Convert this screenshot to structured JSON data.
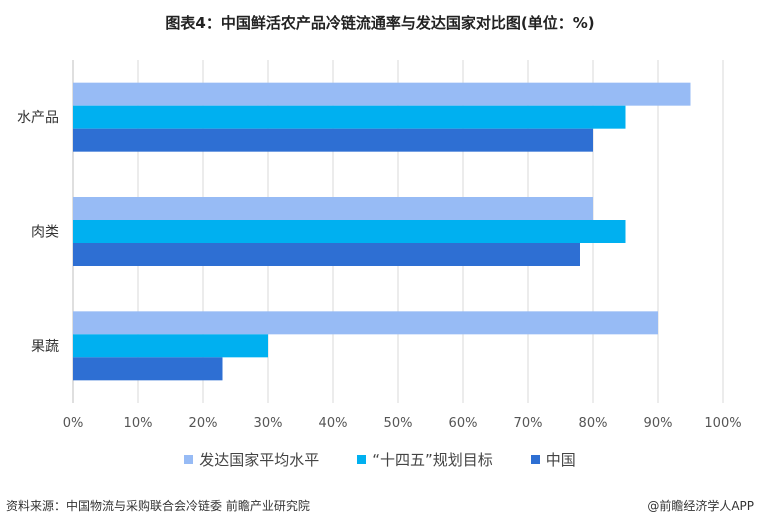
{
  "chart_data": {
    "type": "bar",
    "orientation": "horizontal",
    "title": "图表4：中国鲜活农产品冷链流通率与发达国家对比图(单位：%)",
    "categories": [
      "水产品",
      "肉类",
      "果蔬"
    ],
    "series": [
      {
        "name": "发达国家平均水平",
        "values": [
          95,
          80,
          90
        ],
        "color": "#97bbf5"
      },
      {
        "name": "“十四五”规划目标",
        "values": [
          85,
          85,
          30
        ],
        "color": "#00b0f0"
      },
      {
        "name": "中国",
        "values": [
          80,
          78,
          23
        ],
        "color": "#2e6fd3"
      }
    ],
    "xlim": [
      0,
      100
    ],
    "x_ticks": [
      "0%",
      "10%",
      "20%",
      "30%",
      "40%",
      "50%",
      "60%",
      "70%",
      "80%",
      "90%",
      "100%"
    ],
    "grid": true,
    "legend_position": "bottom"
  },
  "footer": {
    "source": "资料来源：中国物流与采购联合会冷链委 前瞻产业研究院",
    "brand": "@前瞻经济学人APP"
  }
}
